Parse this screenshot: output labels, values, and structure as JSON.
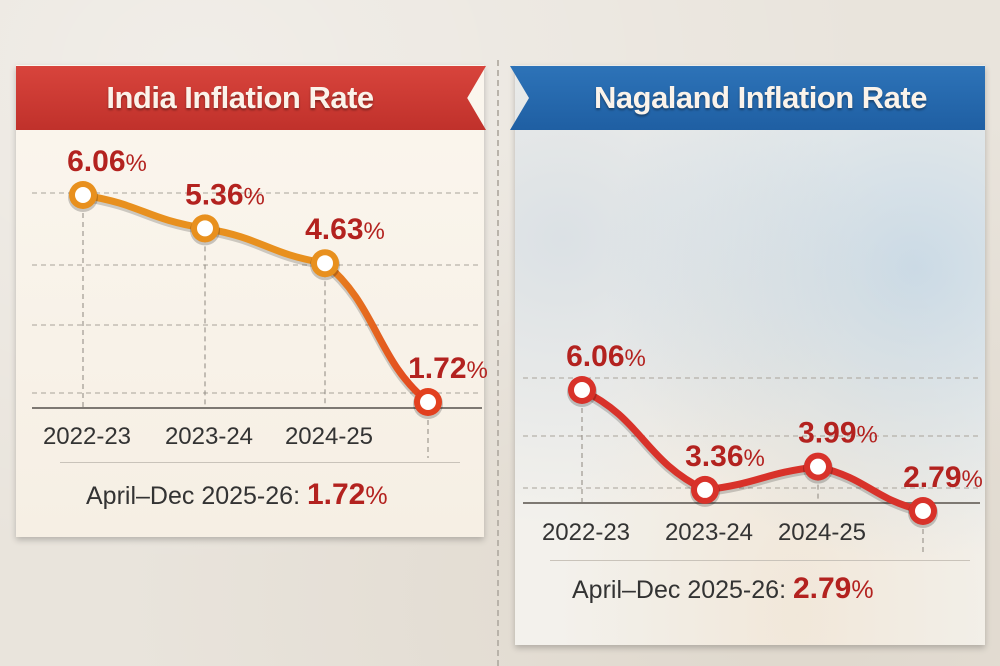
{
  "chart_data": [
    {
      "type": "line",
      "title": "India Inflation Rate",
      "categories": [
        "2022-23",
        "2023-24",
        "2024-25",
        "April-Dec 2025-26"
      ],
      "tick_labels": [
        "2022-23",
        "2023-24",
        "2024-25",
        ""
      ],
      "series": [
        {
          "name": "India",
          "values": [
            6.06,
            5.36,
            4.63,
            1.72
          ]
        }
      ],
      "data_labels": [
        "6.06",
        "5.36",
        "4.63",
        "1.72"
      ],
      "unit": "%",
      "ylim": [
        1.5,
        6.3
      ],
      "grid": true,
      "summary": {
        "label": "April–Dec 2025-26:",
        "value": "1.72",
        "unit": "%"
      },
      "colors": {
        "banner": "#c8362f",
        "line_start": "#e8901e",
        "line_end": "#e2401f",
        "label": "#b3221f"
      }
    },
    {
      "type": "line",
      "title": "Nagaland Inflation Rate",
      "categories": [
        "2022-23",
        "2023-24",
        "2024-25",
        "April-Dec 2025-26"
      ],
      "tick_labels": [
        "2022-23",
        "2023-24",
        "2024-25",
        ""
      ],
      "series": [
        {
          "name": "Nagaland",
          "values": [
            6.06,
            3.36,
            3.99,
            2.79
          ]
        }
      ],
      "data_labels": [
        "6.06",
        "3.36",
        "3.99",
        "2.79"
      ],
      "unit": "%",
      "ylim": [
        2.5,
        6.3
      ],
      "grid": true,
      "summary": {
        "label": "April–Dec 2025-26:",
        "value": "2.79",
        "unit": "%"
      },
      "colors": {
        "banner": "#2266aa",
        "line_start": "#d8322a",
        "line_end": "#d8322a",
        "label": "#b3221f"
      }
    }
  ]
}
